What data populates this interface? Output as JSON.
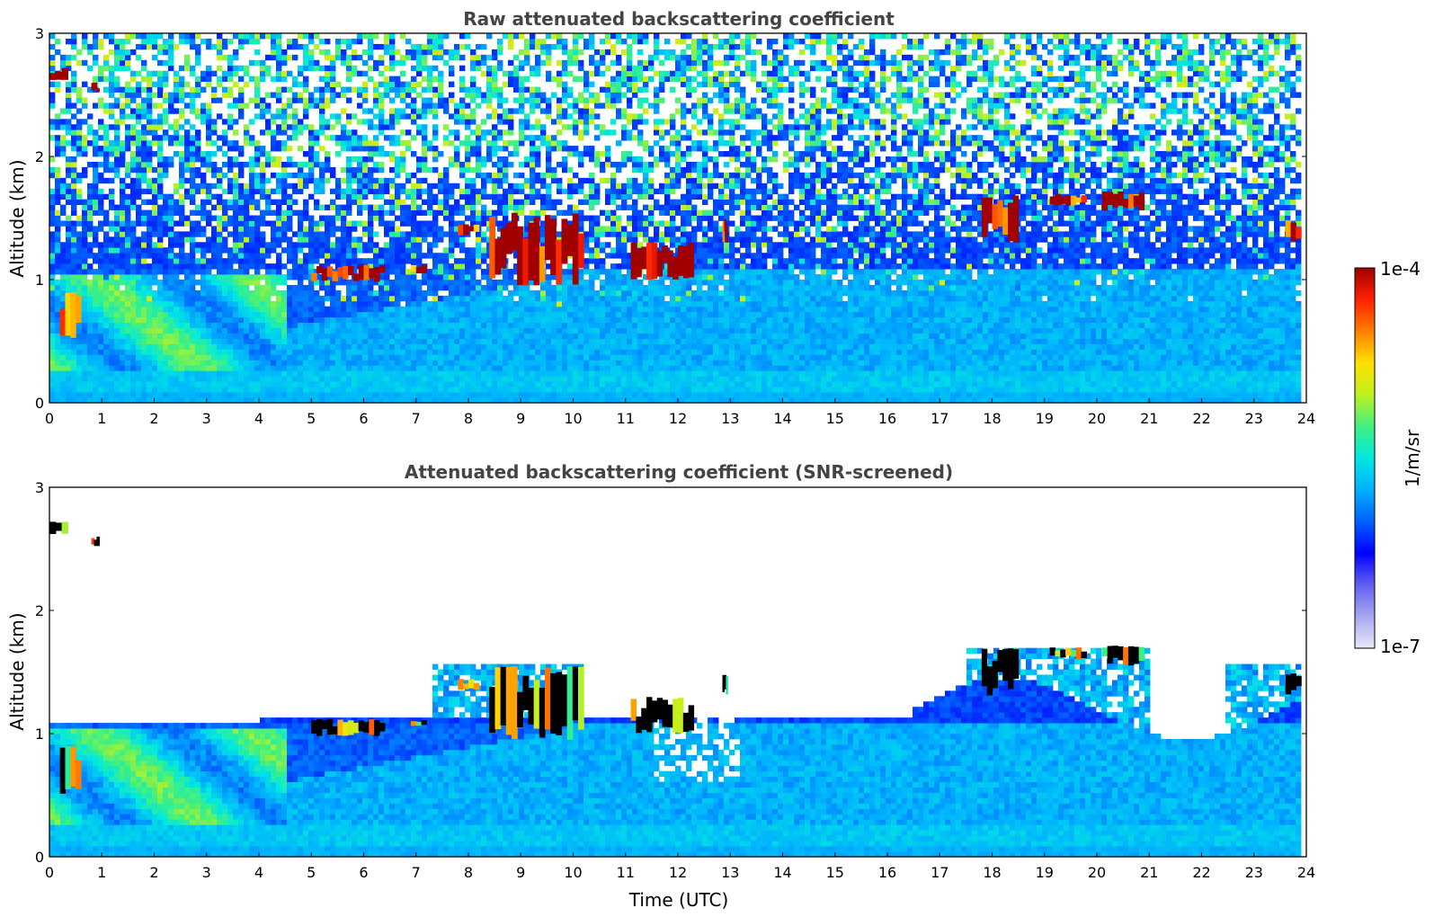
{
  "chart_data": [
    {
      "type": "heatmap",
      "title": "Raw attenuated backscattering coefficient",
      "xlabel": "",
      "ylabel": "Altitude (km)",
      "xlim": [
        0,
        24
      ],
      "ylim": [
        0,
        3
      ],
      "xticks": [
        "0",
        "1",
        "2",
        "3",
        "4",
        "5",
        "6",
        "7",
        "8",
        "9",
        "10",
        "11",
        "12",
        "13",
        "14",
        "15",
        "16",
        "17",
        "18",
        "19",
        "20",
        "21",
        "22",
        "23",
        "24"
      ],
      "yticks": [
        "0",
        "1",
        "2",
        "3"
      ],
      "screened": false,
      "features": [
        {
          "x": [
            0.0,
            0.35
          ],
          "y": [
            2.62,
            2.72
          ],
          "level": "high"
        },
        {
          "x": [
            0.8,
            0.95
          ],
          "y": [
            2.52,
            2.6
          ],
          "level": "high"
        },
        {
          "x": [
            0.2,
            0.6
          ],
          "y": [
            0.5,
            0.9
          ],
          "level": "high"
        },
        {
          "x": [
            5.0,
            6.4
          ],
          "y": [
            0.98,
            1.12
          ],
          "level": "high"
        },
        {
          "x": [
            6.9,
            7.2
          ],
          "y": [
            1.05,
            1.12
          ],
          "level": "high"
        },
        {
          "x": [
            7.8,
            8.2
          ],
          "y": [
            1.35,
            1.45
          ],
          "level": "high"
        },
        {
          "x": [
            8.4,
            10.2
          ],
          "y": [
            0.95,
            1.55
          ],
          "level": "high"
        },
        {
          "x": [
            11.1,
            12.3
          ],
          "y": [
            1.0,
            1.3
          ],
          "level": "high"
        },
        {
          "x": [
            12.85,
            12.95
          ],
          "y": [
            1.3,
            1.5
          ],
          "level": "high"
        },
        {
          "x": [
            17.8,
            18.5
          ],
          "y": [
            1.3,
            1.7
          ],
          "level": "high"
        },
        {
          "x": [
            19.1,
            19.8
          ],
          "y": [
            1.6,
            1.7
          ],
          "level": "high"
        },
        {
          "x": [
            20.1,
            20.9
          ],
          "y": [
            1.55,
            1.72
          ],
          "level": "high"
        },
        {
          "x": [
            23.6,
            23.9
          ],
          "y": [
            1.3,
            1.5
          ],
          "level": "high"
        }
      ]
    },
    {
      "type": "heatmap",
      "title": "Attenuated backscattering coefficient (SNR-screened)",
      "xlabel": "Time (UTC)",
      "ylabel": "Altitude (km)",
      "xlim": [
        0,
        24
      ],
      "ylim": [
        0,
        3
      ],
      "xticks": [
        "0",
        "1",
        "2",
        "3",
        "4",
        "5",
        "6",
        "7",
        "8",
        "9",
        "10",
        "11",
        "12",
        "13",
        "14",
        "15",
        "16",
        "17",
        "18",
        "19",
        "20",
        "21",
        "22",
        "23",
        "24"
      ],
      "yticks": [
        "0",
        "1",
        "2",
        "3"
      ],
      "screened": true,
      "features": [
        {
          "x": [
            0.0,
            0.35
          ],
          "y": [
            2.62,
            2.72
          ],
          "level": "saturated"
        },
        {
          "x": [
            0.8,
            0.95
          ],
          "y": [
            2.52,
            2.6
          ],
          "level": "saturated"
        },
        {
          "x": [
            0.2,
            0.6
          ],
          "y": [
            0.5,
            0.9
          ],
          "level": "saturated"
        },
        {
          "x": [
            5.0,
            6.4
          ],
          "y": [
            0.98,
            1.12
          ],
          "level": "saturated"
        },
        {
          "x": [
            6.9,
            7.2
          ],
          "y": [
            1.05,
            1.12
          ],
          "level": "saturated"
        },
        {
          "x": [
            7.8,
            8.2
          ],
          "y": [
            1.35,
            1.45
          ],
          "level": "saturated"
        },
        {
          "x": [
            8.4,
            10.2
          ],
          "y": [
            0.95,
            1.55
          ],
          "level": "saturated"
        },
        {
          "x": [
            11.1,
            12.3
          ],
          "y": [
            1.0,
            1.3
          ],
          "level": "saturated"
        },
        {
          "x": [
            12.85,
            12.95
          ],
          "y": [
            1.3,
            1.5
          ],
          "level": "saturated"
        },
        {
          "x": [
            17.8,
            18.5
          ],
          "y": [
            1.3,
            1.7
          ],
          "level": "saturated"
        },
        {
          "x": [
            19.1,
            19.8
          ],
          "y": [
            1.6,
            1.7
          ],
          "level": "saturated"
        },
        {
          "x": [
            20.1,
            20.9
          ],
          "y": [
            1.55,
            1.72
          ],
          "level": "saturated"
        },
        {
          "x": [
            23.6,
            23.9
          ],
          "y": [
            1.3,
            1.5
          ],
          "level": "saturated"
        }
      ]
    }
  ],
  "colorbar": {
    "label": "1/m/sr",
    "min_label": "1e-7",
    "max_label": "1e-4",
    "min": 1e-07,
    "max": 0.0001,
    "scale": "log",
    "colormap": [
      "#e8e8f8",
      "#a8a8f0",
      "#6060f0",
      "#0000ff",
      "#0060ff",
      "#00b0ff",
      "#00e8e0",
      "#40f080",
      "#c0f020",
      "#ffe000",
      "#ff8000",
      "#ff2000",
      "#a00000"
    ]
  }
}
